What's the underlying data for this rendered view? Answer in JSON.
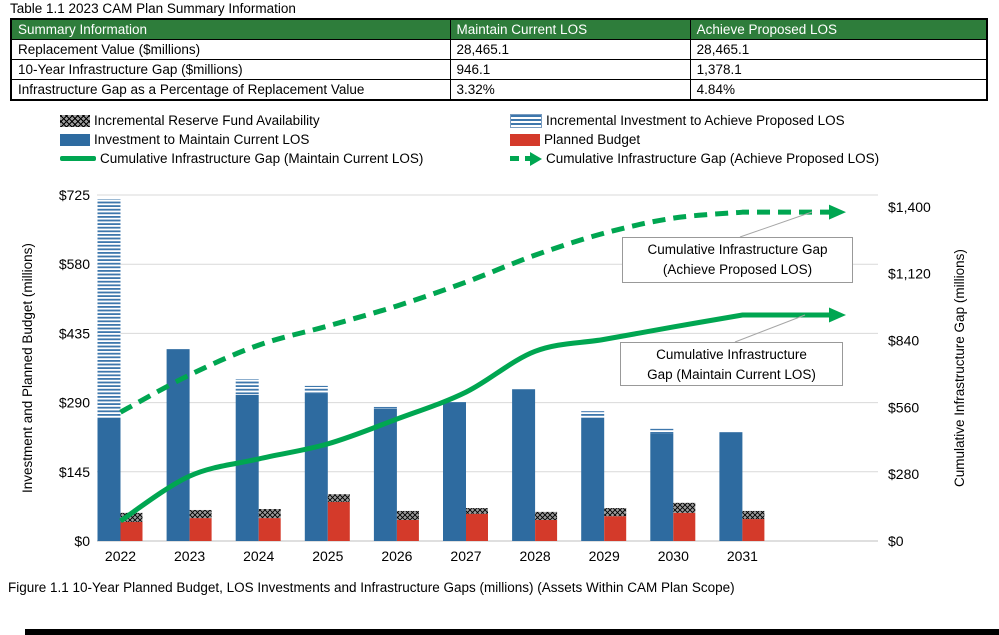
{
  "page": {
    "table_title": "Table 1.1 2023 CAM Plan Summary Information",
    "figure_caption": "Figure 1.1 10-Year Planned Budget, LOS Investments and Infrastructure Gaps (millions) (Assets Within CAM Plan Scope)"
  },
  "summary_table": {
    "headers": [
      "Summary Information",
      "Maintain Current LOS",
      "Achieve Proposed LOS"
    ],
    "rows": [
      {
        "label": "Replacement Value ($millions)",
        "maintain": "28,465.1",
        "achieve": "28,465.1"
      },
      {
        "label": "10-Year Infrastructure Gap ($millions)",
        "maintain": "946.1",
        "achieve": "1,378.1"
      },
      {
        "label": "Infrastructure Gap as a Percentage of Replacement Value",
        "maintain": "3.32%",
        "achieve": "4.84%"
      }
    ]
  },
  "legend": {
    "items": [
      {
        "label": "Incremental Reserve Fund Availability",
        "swatch": "crosshatch"
      },
      {
        "label": "Investment to Maintain Current LOS",
        "swatch": "blue"
      },
      {
        "label": "Cumulative Infrastructure Gap (Maintain Current LOS)",
        "swatch": "solid-line"
      },
      {
        "label": "Incremental Investment to Achieve Proposed LOS",
        "swatch": "stripes"
      },
      {
        "label": "Planned Budget",
        "swatch": "red"
      },
      {
        "label": "Cumulative Infrastructure Gap (Achieve Proposed LOS)",
        "swatch": "dashed-arrow"
      }
    ]
  },
  "annotations": {
    "achieve": {
      "line1": "Cumulative Infrastructure Gap",
      "line2": "(Achieve Proposed LOS)"
    },
    "maintain": {
      "line1": "Cumulative Infrastructure",
      "line2": "Gap (Maintain Current LOS)"
    }
  },
  "colors": {
    "table_header_green": "#2E7D3B",
    "bar_blue": "#2E6BA0",
    "bar_blue_stripe": "#3E77AC",
    "bar_red": "#D43A2A",
    "hatch_gray": "#9c9c9c",
    "line_green": "#00A651",
    "gridline": "#D9D9D9"
  },
  "chart_data": {
    "type": "combo-bar-line",
    "categories": [
      "2022",
      "2023",
      "2024",
      "2025",
      "2026",
      "2027",
      "2028",
      "2029",
      "2030",
      "2031"
    ],
    "series": [
      {
        "name": "Investment to Maintain Current LOS",
        "type": "bar",
        "stack": "investment",
        "axis": "left",
        "pattern": "solid-blue",
        "values": [
          258,
          402,
          306,
          310,
          277,
          291,
          318,
          258,
          226,
          228
        ]
      },
      {
        "name": "Incremental Investment to Achieve Proposed LOS",
        "type": "bar",
        "stack": "investment",
        "axis": "left",
        "pattern": "h-stripes",
        "values": [
          458,
          0,
          33,
          15,
          4,
          0,
          0,
          14,
          9,
          0
        ]
      },
      {
        "name": "Planned Budget",
        "type": "bar",
        "stack": "budget",
        "axis": "left",
        "pattern": "solid-red",
        "values": [
          40,
          48,
          48,
          82,
          44,
          57,
          44,
          52,
          59,
          46
        ]
      },
      {
        "name": "Incremental Reserve Fund Availability",
        "type": "bar",
        "stack": "budget",
        "axis": "left",
        "pattern": "crosshatch",
        "values": [
          19,
          17,
          19,
          16,
          19,
          12,
          17,
          17,
          21,
          17
        ]
      },
      {
        "name": "Cumulative Infrastructure Gap (Maintain Current LOS)",
        "type": "line",
        "style": "solid",
        "axis": "right",
        "values": [
          84,
          272,
          344,
          407,
          511,
          624,
          795,
          845,
          897,
          947
        ]
      },
      {
        "name": "Cumulative Infrastructure Gap (Achieve Proposed LOS)",
        "type": "line",
        "style": "dashed",
        "axis": "right",
        "values": [
          540,
          696,
          821,
          901,
          985,
          1085,
          1198,
          1290,
          1353,
          1378
        ]
      }
    ],
    "left_axis": {
      "title": "Investment and Planned Budget (millions)",
      "tick_labels": [
        "$0",
        "$145",
        "$290",
        "$435",
        "$580",
        "$725"
      ],
      "tick_values": [
        0,
        145,
        290,
        435,
        580,
        725
      ],
      "min": 0,
      "max": 725
    },
    "right_axis": {
      "title": "Cumulative Infrastructure Gap (millions)",
      "tick_labels": [
        "$0",
        "$280",
        "$560",
        "$840",
        "$1,120",
        "$1,400"
      ],
      "tick_values": [
        0,
        280,
        560,
        840,
        1120,
        1400
      ],
      "min": 0,
      "max": 1450
    },
    "gridlines": true,
    "legend_position": "top"
  }
}
